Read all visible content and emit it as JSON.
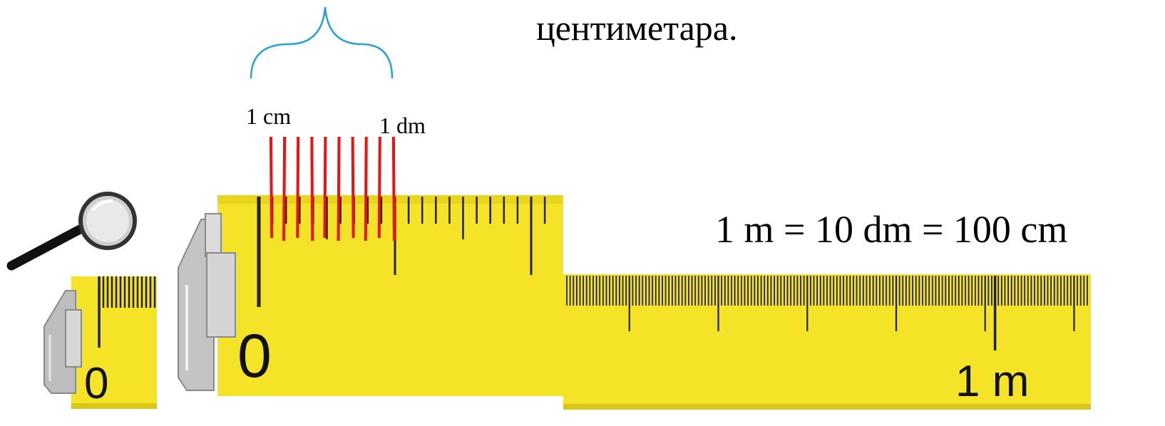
{
  "caption": "центиметара.",
  "equation": "1 m = 10 dm = 100 cm",
  "labels": {
    "cm": "1 cm",
    "dm": "1 dm"
  },
  "ruler_numbers": {
    "zero": "0",
    "one_meter": "1 m"
  },
  "icons": {
    "magnifier": "magnifying-glass-icon",
    "brace": "curly-brace-icon"
  },
  "colors": {
    "tape": "#f4e326",
    "tape_edge": "#d9c81a",
    "tick": "#222222",
    "red_marks": "#ee1111",
    "brace": "#2aa2d8"
  }
}
